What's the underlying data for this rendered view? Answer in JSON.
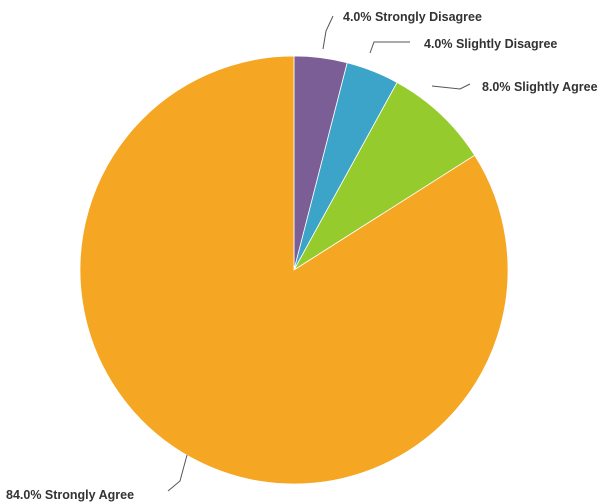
{
  "chart_data": {
    "type": "pie",
    "title": "",
    "legend": "none",
    "start_angle_deg": 0,
    "direction": "clockwise",
    "slices": [
      {
        "label": "Strongly Disagree",
        "value": 4.0,
        "display": "4.0% Strongly Disagree",
        "color": "#7b5e96"
      },
      {
        "label": "Slightly Disagree",
        "value": 4.0,
        "display": "4.0% Slightly Disagree",
        "color": "#3ca3c9"
      },
      {
        "label": "Slightly Agree",
        "value": 8.0,
        "display": "8.0% Slightly Agree",
        "color": "#95cb2d"
      },
      {
        "label": "Strongly Agree",
        "value": 84.0,
        "display": "84.0% Strongly Agree",
        "color": "#f5a623"
      }
    ]
  }
}
